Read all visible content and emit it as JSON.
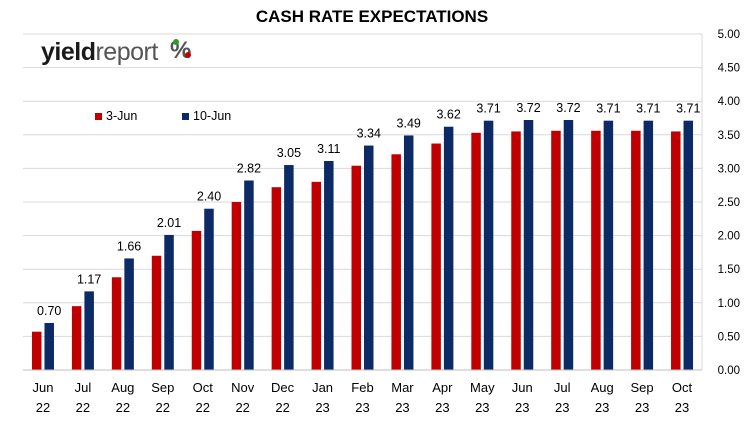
{
  "chart_data": {
    "type": "bar",
    "title": "CASH RATE EXPECTATIONS",
    "categories": [
      [
        "Jun",
        "22"
      ],
      [
        "Jul",
        "22"
      ],
      [
        "Aug",
        "22"
      ],
      [
        "Sep",
        "22"
      ],
      [
        "Oct",
        "22"
      ],
      [
        "Nov",
        "22"
      ],
      [
        "Dec",
        "22"
      ],
      [
        "Jan",
        "23"
      ],
      [
        "Feb",
        "23"
      ],
      [
        "Mar",
        "23"
      ],
      [
        "Apr",
        "23"
      ],
      [
        "May",
        "23"
      ],
      [
        "Jun",
        "23"
      ],
      [
        "Jul",
        "23"
      ],
      [
        "Aug",
        "23"
      ],
      [
        "Sep",
        "23"
      ],
      [
        "Oct",
        "23"
      ]
    ],
    "series": [
      {
        "name": "3-Jun",
        "color": "#C00000",
        "values": [
          0.57,
          0.95,
          1.38,
          1.7,
          2.07,
          2.5,
          2.72,
          2.8,
          3.04,
          3.21,
          3.37,
          3.53,
          3.55,
          3.56,
          3.56,
          3.56,
          3.55
        ],
        "show_labels": false
      },
      {
        "name": "10-Jun",
        "color": "#0C2A66",
        "values": [
          0.7,
          1.17,
          1.66,
          2.01,
          2.4,
          2.82,
          3.05,
          3.11,
          3.34,
          3.49,
          3.62,
          3.71,
          3.72,
          3.72,
          3.71,
          3.71,
          3.71
        ],
        "show_labels": true
      }
    ],
    "ylim": [
      0,
      5
    ],
    "yticks": [
      "0.00",
      "0.50",
      "1.00",
      "1.50",
      "2.00",
      "2.50",
      "3.00",
      "3.50",
      "4.00",
      "4.50",
      "5.00"
    ],
    "y_axis_side": "right",
    "grid": true,
    "legend_position": "top-left",
    "xlabel": "",
    "ylabel": ""
  },
  "logo": {
    "part1": "yield",
    "part2": "report",
    "symbol": "%"
  }
}
